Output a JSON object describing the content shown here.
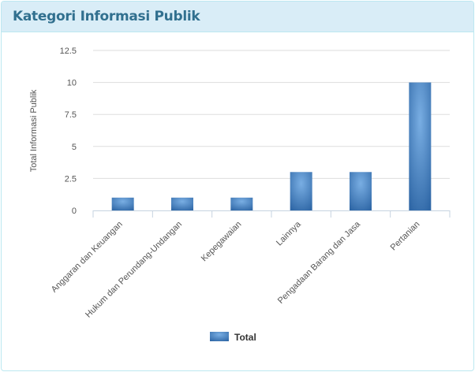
{
  "panel": {
    "title": "Kategori Informasi Publik"
  },
  "chart_data": {
    "type": "bar",
    "title": "",
    "xlabel": "",
    "ylabel": "Total Informasi Publik",
    "categories": [
      "Anggaran dan Keuangan",
      "Hukum dan Perundang-Undangan",
      "Kepegawaian",
      "Lainnya",
      "Pengadaan Barang dan Jasa",
      "Pertanian"
    ],
    "series": [
      {
        "name": "Total",
        "values": [
          1,
          1,
          1,
          3,
          3,
          10
        ],
        "color": "#3a7cc4"
      }
    ],
    "ylim": [
      0,
      12.5
    ],
    "yticks": [
      "0",
      "2.5",
      "5",
      "7.5",
      "10",
      "12.5"
    ],
    "grid": true,
    "legend": "bottom"
  }
}
